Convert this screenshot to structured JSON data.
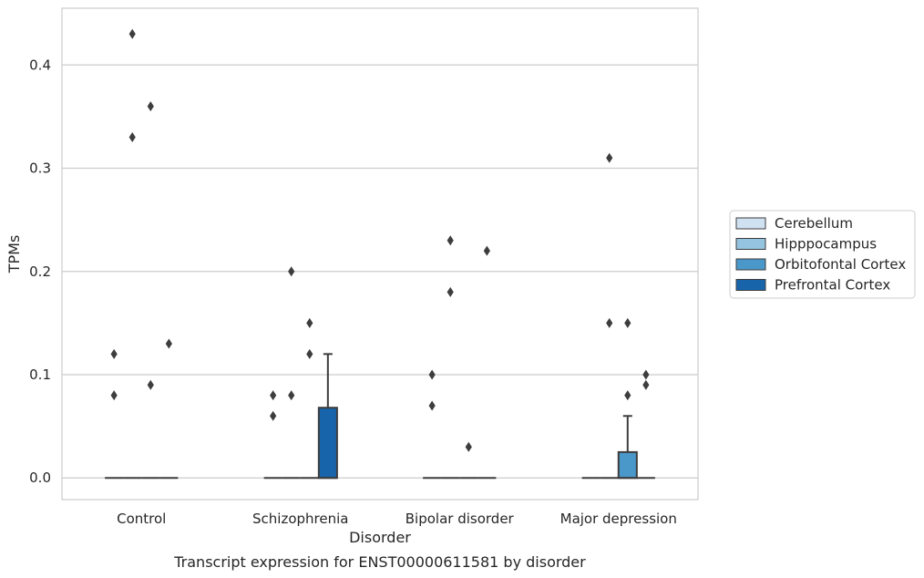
{
  "caption": "Transcript expression for ENST00000611581 by disorder",
  "chart_data": {
    "type": "box",
    "xlabel": "Disorder",
    "ylabel": "TPMs",
    "ylim": [
      -0.021,
      0.455
    ],
    "yticks": [
      0.0,
      0.1,
      0.2,
      0.3,
      0.4
    ],
    "ytick_labels": [
      "0.0",
      "0.1",
      "0.2",
      "0.3",
      "0.4"
    ],
    "grid": "horizontal",
    "categories": [
      "Control",
      "Schizophrenia",
      "Bipolar disorder",
      "Major depression"
    ],
    "legend": {
      "placement": "right",
      "entries": [
        {
          "name": "Cerebellum",
          "color": "#d0e1f2"
        },
        {
          "name": "Hipppocampus",
          "color": "#94c4df"
        },
        {
          "name": "Orbitofontal Cortex",
          "color": "#4a98c9"
        },
        {
          "name": "Prefrontal Cortex",
          "color": "#1764ab"
        }
      ]
    },
    "series": [
      {
        "name": "Cerebellum",
        "boxes": [
          {
            "q1": 0,
            "median": 0,
            "q3": 0,
            "whisker_low": 0,
            "whisker_high": 0,
            "outliers": [
              0.08,
              0.12
            ]
          },
          {
            "q1": 0,
            "median": 0,
            "q3": 0,
            "whisker_low": 0,
            "whisker_high": 0,
            "outliers": [
              0.06,
              0.08
            ]
          },
          {
            "q1": 0,
            "median": 0,
            "q3": 0,
            "whisker_low": 0,
            "whisker_high": 0,
            "outliers": [
              0.07,
              0.1
            ]
          },
          {
            "q1": 0,
            "median": 0,
            "q3": 0,
            "whisker_low": 0,
            "whisker_high": 0,
            "outliers": []
          }
        ]
      },
      {
        "name": "Hipppocampus",
        "boxes": [
          {
            "q1": 0,
            "median": 0,
            "q3": 0,
            "whisker_low": 0,
            "whisker_high": 0,
            "outliers": [
              0.33,
              0.43
            ]
          },
          {
            "q1": 0,
            "median": 0,
            "q3": 0,
            "whisker_low": 0,
            "whisker_high": 0,
            "outliers": [
              0.08,
              0.2
            ]
          },
          {
            "q1": 0,
            "median": 0,
            "q3": 0,
            "whisker_low": 0,
            "whisker_high": 0,
            "outliers": [
              0.18,
              0.23
            ]
          },
          {
            "q1": 0,
            "median": 0,
            "q3": 0,
            "whisker_low": 0,
            "whisker_high": 0,
            "outliers": [
              0.15,
              0.31
            ]
          }
        ]
      },
      {
        "name": "Orbitofontal Cortex",
        "boxes": [
          {
            "q1": 0,
            "median": 0,
            "q3": 0,
            "whisker_low": 0,
            "whisker_high": 0,
            "outliers": [
              0.09,
              0.36
            ]
          },
          {
            "q1": 0,
            "median": 0,
            "q3": 0,
            "whisker_low": 0,
            "whisker_high": 0,
            "outliers": [
              0.12,
              0.15
            ]
          },
          {
            "q1": 0,
            "median": 0,
            "q3": 0,
            "whisker_low": 0,
            "whisker_high": 0,
            "outliers": [
              0.03
            ]
          },
          {
            "q1": 0,
            "median": 0,
            "q3": 0.025,
            "whisker_low": 0,
            "whisker_high": 0.06,
            "outliers": [
              0.08,
              0.15
            ]
          }
        ]
      },
      {
        "name": "Prefrontal Cortex",
        "boxes": [
          {
            "q1": 0,
            "median": 0,
            "q3": 0,
            "whisker_low": 0,
            "whisker_high": 0,
            "outliers": [
              0.13
            ]
          },
          {
            "q1": 0,
            "median": 0,
            "q3": 0.068,
            "whisker_low": 0,
            "whisker_high": 0.12,
            "outliers": []
          },
          {
            "q1": 0,
            "median": 0,
            "q3": 0,
            "whisker_low": 0,
            "whisker_high": 0,
            "outliers": [
              0.22
            ]
          },
          {
            "q1": 0,
            "median": 0,
            "q3": 0,
            "whisker_low": 0,
            "whisker_high": 0,
            "outliers": [
              0.09,
              0.1
            ]
          }
        ]
      }
    ]
  }
}
